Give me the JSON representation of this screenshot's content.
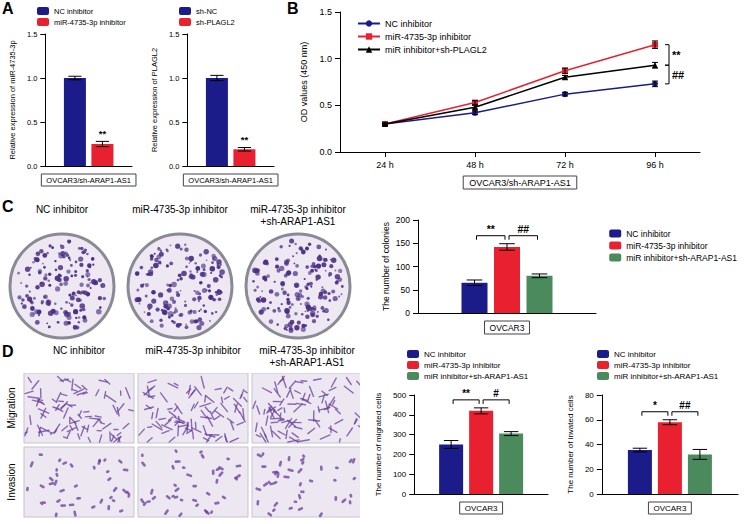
{
  "panel_labels": [
    "A",
    "B",
    "C",
    "D"
  ],
  "colony_images": {
    "labels": [
      "NC inhibitor",
      "miR-4735-3p inhibitor",
      "miR-4735-3p inhibitor +sh-ARAP1-AS1"
    ]
  },
  "transwell_images": {
    "columns": [
      "NC inhibitor",
      "miR-4735-3p inhibitor",
      "miR-4735-3p inhibitor +sh-ARAP1-AS1"
    ],
    "rows": [
      "Migration",
      "Invasion"
    ]
  },
  "chart_data": [
    {
      "type": "bar",
      "categories": [
        "OVCAR3/sh-ARAP1-AS1"
      ],
      "y_label": "Relative expression of miR-4735-3p",
      "ylim": [
        0,
        1.5
      ],
      "yticks": [
        {
          "value": 0,
          "label": "0.0"
        },
        {
          "value": 0.5,
          "label": "0.5"
        },
        {
          "value": 1,
          "label": "1.0"
        },
        {
          "value": 1.5,
          "label": "1.5"
        }
      ],
      "grid": false,
      "legend": "top",
      "series": [
        {
          "name": "NC inhibitor",
          "color": "#1b1b8a",
          "values": [
            1.0
          ],
          "errors": [
            0.02
          ]
        },
        {
          "name": "miR-4735-3p inhibitor",
          "color": "#e8202f",
          "values": [
            0.25
          ],
          "errors": [
            0.03
          ]
        }
      ],
      "annotations": [
        {
          "series": [
            "miR-4735-3p inhibitor"
          ],
          "text": "**"
        }
      ]
    },
    {
      "type": "bar",
      "categories": [
        "OVCAR3/sh-ARAP1-AS1"
      ],
      "y_label": "Relative expression of PLAGL2",
      "ylim": [
        0,
        1.5
      ],
      "yticks": [
        {
          "value": 0,
          "label": "0.0"
        },
        {
          "value": 0.5,
          "label": "0.5"
        },
        {
          "value": 1,
          "label": "1.0"
        },
        {
          "value": 1.5,
          "label": "1.5"
        }
      ],
      "grid": false,
      "legend": "top",
      "series": [
        {
          "name": "sh-NC",
          "color": "#1b1b8a",
          "values": [
            1.0
          ],
          "errors": [
            0.03
          ]
        },
        {
          "name": "sh-PLAGL2",
          "color": "#e8202f",
          "values": [
            0.19
          ],
          "errors": [
            0.02
          ]
        }
      ],
      "annotations": [
        {
          "series": [
            "sh-PLAGL2"
          ],
          "text": "**"
        }
      ]
    },
    {
      "type": "line",
      "categories": [
        "24 h",
        "48 h",
        "72 h",
        "96 h"
      ],
      "x_label": "OVCAR3/sh-ARAP1-AS1",
      "y_label": "OD values (450 nm)",
      "ylim": [
        0,
        1.5
      ],
      "yticks": [
        {
          "value": 0,
          "label": "0.0"
        },
        {
          "value": 0.5,
          "label": "0.5"
        },
        {
          "value": 1,
          "label": "1.0"
        },
        {
          "value": 1.5,
          "label": "1.5"
        }
      ],
      "grid": false,
      "legend": "top-left",
      "series": [
        {
          "name": "NC inhibitor",
          "color": "#1b1b8a",
          "marker": "circle",
          "values": [
            0.3,
            0.42,
            0.62,
            0.73
          ],
          "errors": [
            0.01,
            0.02,
            0.02,
            0.03
          ]
        },
        {
          "name": "miR-4735-3p inhibitor",
          "color": "#e8202f",
          "marker": "square",
          "values": [
            0.3,
            0.53,
            0.87,
            1.15
          ],
          "errors": [
            0.01,
            0.02,
            0.03,
            0.04
          ]
        },
        {
          "name": "miR inhibitor+sh-PLAGL2",
          "color": "#000000",
          "marker": "triangle",
          "values": [
            0.3,
            0.48,
            0.8,
            0.93
          ],
          "errors": [
            0.01,
            0.02,
            0.02,
            0.03
          ]
        }
      ],
      "annotations": [
        {
          "x": "96 h",
          "series": [
            "miR-4735-3p inhibitor",
            "miR inhibitor+sh-PLAGL2"
          ],
          "text": "**"
        },
        {
          "x": "96 h",
          "series": [
            "miR inhibitor+sh-PLAGL2",
            "NC inhibitor"
          ],
          "text": "##"
        }
      ]
    },
    {
      "type": "bar",
      "categories": [
        "OVCAR3"
      ],
      "y_label": "The number of colonies",
      "ylim": [
        0,
        200
      ],
      "yticks": [
        0,
        50,
        100,
        150,
        200
      ],
      "grid": false,
      "legend": "right",
      "series": [
        {
          "name": "NC inhibitor",
          "color": "#1b1b8a",
          "values": [
            65
          ],
          "errors": [
            6
          ]
        },
        {
          "name": "miR-4735-3p inhibitor",
          "color": "#e8202f",
          "values": [
            142
          ],
          "errors": [
            7
          ]
        },
        {
          "name": "miR inhibitor+sh-ARAP1-AS1",
          "color": "#4a8a5c",
          "values": [
            80
          ],
          "errors": [
            4
          ]
        }
      ],
      "annotations": [
        {
          "series": [
            "NC inhibitor",
            "miR-4735-3p inhibitor"
          ],
          "text": "**"
        },
        {
          "series": [
            "miR-4735-3p inhibitor",
            "miR inhibitor+sh-ARAP1-AS1"
          ],
          "text": "##"
        }
      ]
    },
    {
      "type": "bar",
      "categories": [
        "OVCAR3"
      ],
      "y_label": "The number of migrated cells",
      "ylim": [
        0,
        500
      ],
      "yticks": [
        0,
        100,
        200,
        300,
        400,
        500
      ],
      "grid": false,
      "legend": "top",
      "series": [
        {
          "name": "NC inhibitor",
          "color": "#1b1b8a",
          "values": [
            250
          ],
          "errors": [
            20
          ]
        },
        {
          "name": "miR-4735-3p inhibitor",
          "color": "#e8202f",
          "values": [
            420
          ],
          "errors": [
            15
          ]
        },
        {
          "name": "miR inhibitor+sh-ARAP1-AS1",
          "color": "#4a8a5c",
          "values": [
            305
          ],
          "errors": [
            10
          ]
        }
      ],
      "annotations": [
        {
          "series": [
            "NC inhibitor",
            "miR-4735-3p inhibitor"
          ],
          "text": "**"
        },
        {
          "series": [
            "miR-4735-3p inhibitor",
            "miR inhibitor+sh-ARAP1-AS1"
          ],
          "text": "#"
        }
      ]
    },
    {
      "type": "bar",
      "categories": [
        "OVCAR3"
      ],
      "y_label": "The number of invated cells",
      "ylim": [
        0,
        80
      ],
      "yticks": [
        0,
        20,
        40,
        60,
        80
      ],
      "grid": false,
      "legend": "top",
      "series": [
        {
          "name": "NC inhibitor",
          "color": "#1b1b8a",
          "values": [
            35.5
          ],
          "errors": [
            1.5
          ]
        },
        {
          "name": "miR-4735-3p inhibitor",
          "color": "#e8202f",
          "values": [
            58
          ],
          "errors": [
            2
          ]
        },
        {
          "name": "miR inhibitor+sh-ARAP1-AS1",
          "color": "#4a8a5c",
          "values": [
            32
          ],
          "errors": [
            4
          ]
        }
      ],
      "annotations": [
        {
          "series": [
            "NC inhibitor",
            "miR-4735-3p inhibitor"
          ],
          "text": "*"
        },
        {
          "series": [
            "miR-4735-3p inhibitor",
            "miR inhibitor+sh-ARAP1-AS1"
          ],
          "text": "##"
        }
      ]
    }
  ]
}
